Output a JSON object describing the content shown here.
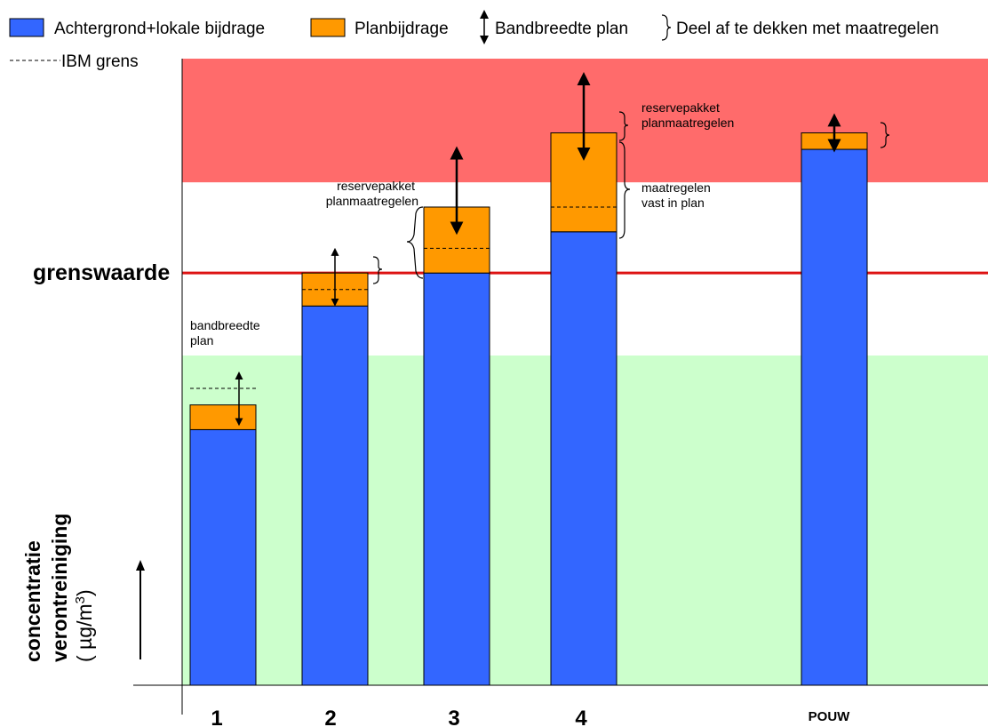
{
  "legend": {
    "items": [
      {
        "label": "Achtergrond+lokale bijdrage",
        "color": "#3366FF",
        "icon": "blue-square-swatch"
      },
      {
        "label": "Planbijdrage",
        "color": "#FF9900",
        "icon": "orange-square-swatch"
      },
      {
        "label": "Bandbreedte plan",
        "icon": "double-arrow-icon"
      },
      {
        "label": "Deel af te dekken met maatregelen",
        "icon": "brace-icon"
      }
    ],
    "ibm_label": "IBM grens"
  },
  "y_axis": {
    "threshold_label": "grenswaarde",
    "title_line1": "concentratie",
    "title_line2": "verontreiniging",
    "unit_prefix": "( µg/m",
    "unit_sup": "3",
    "unit_suffix": ")"
  },
  "annotations": {
    "bandbreedte_line1": "bandbreedte",
    "bandbreedte_line2": "plan",
    "reserve3_line1": "reservepakket",
    "reserve3_line2": "planmaatregelen",
    "reserve4_line1": "reservepakket",
    "reserve4_line2": "planmaatregelen",
    "vast_line1": "maatregelen",
    "vast_line2": "vast in plan"
  },
  "chart_data": {
    "type": "bar",
    "stacked": true,
    "categories": [
      "1",
      "2",
      "3",
      "4",
      "POUW"
    ],
    "series": [
      {
        "name": "Achtergrond+lokale bijdrage",
        "color": "#3366FF",
        "values": [
          31,
          46,
          50,
          55,
          65
        ]
      },
      {
        "name": "Planbijdrage",
        "color": "#FF9900",
        "values": [
          3,
          4,
          8,
          12,
          2
        ]
      }
    ],
    "ibm_line_values": [
      36,
      48,
      53,
      58,
      null
    ],
    "bandwidth_arrow_ranges": [
      [
        31.5,
        38
      ],
      [
        46,
        53
      ],
      [
        55,
        65
      ],
      [
        64,
        74
      ],
      [
        65,
        69
      ]
    ],
    "grenswaarde": 50,
    "zones": [
      {
        "name": "green",
        "from": 0,
        "to": 40,
        "color": "#CCFFCC"
      },
      {
        "name": "white",
        "from": 40,
        "to": 61,
        "color": "#FFFFFF"
      },
      {
        "name": "red",
        "from": 61,
        "to": 76,
        "color": "#FF6B6B"
      }
    ],
    "ylim": [
      0,
      76
    ],
    "grid": false
  }
}
